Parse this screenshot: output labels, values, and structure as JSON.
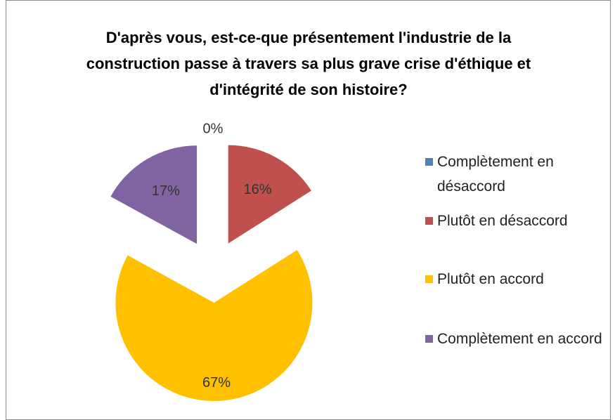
{
  "chart_data": {
    "type": "pie",
    "title": "D'après vous, est-ce-que présentement l'industrie de la construction passe à travers sa plus grave crise d'éthique et d'intégrité de son histoire?",
    "categories": [
      "Complètement en désaccord",
      "Plutôt en désaccord",
      "Plutôt en accord",
      "Complètement en accord"
    ],
    "values": [
      0,
      16,
      67,
      17
    ],
    "value_labels": [
      "0%",
      "16%",
      "67%",
      "17%"
    ],
    "colors": [
      "#4f81bd",
      "#c0504d",
      "#ffc000",
      "#8064a2"
    ],
    "legend": "right"
  }
}
